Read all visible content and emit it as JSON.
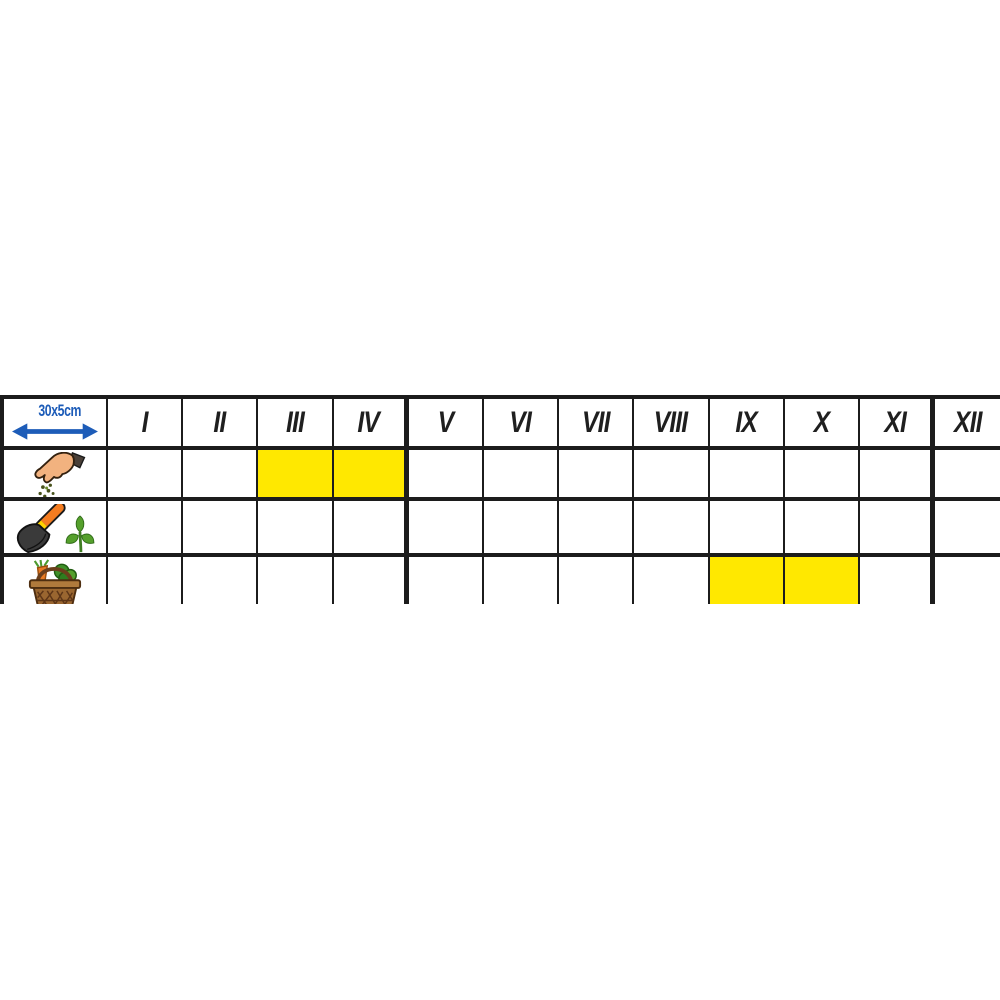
{
  "chart_data": {
    "type": "table",
    "description": "Seed packet planting calendar grid: months I-XII across the top, activity rows marked with pictograms, yellow cells mark active months",
    "spacing_label": "30x5cm",
    "months": [
      "I",
      "II",
      "III",
      "IV",
      "V",
      "VI",
      "VII",
      "VIII",
      "IX",
      "X",
      "XI",
      "XII"
    ],
    "rows": [
      {
        "id": "sowing",
        "icon": "sowing-hand-icon",
        "highlighted_months": [
          "III",
          "IV"
        ]
      },
      {
        "id": "planting",
        "icon": "trowel-seedling-icon",
        "highlighted_months": []
      },
      {
        "id": "harvest",
        "icon": "harvest-basket-icon",
        "highlighted_months": [
          "IX",
          "X"
        ]
      }
    ],
    "quarter_dividers_after_months": [
      "IV",
      "XI"
    ],
    "colors": {
      "highlight": "#FFE800",
      "grid": "#1c1c1c",
      "label_blue": "#1d5cb8"
    }
  }
}
